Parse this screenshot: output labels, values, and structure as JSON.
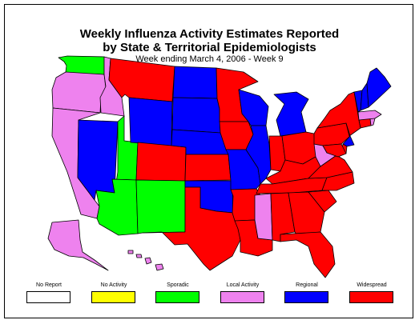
{
  "title_line1": "Weekly Influenza Activity Estimates Reported",
  "title_line2": "by State & Territorial Epidemiologists",
  "subtitle": "Week ending March 4, 2006 - Week 9",
  "colors": {
    "no_report": "#ffffff",
    "no_activity": "#ffff00",
    "sporadic": "#00ff00",
    "local": "#ee82ee",
    "regional": "#0000ff",
    "widespread": "#ff0000",
    "border": "#000000"
  },
  "legend": [
    {
      "label": "No Report",
      "level": "no_report"
    },
    {
      "label": "No Activity",
      "level": "no_activity"
    },
    {
      "label": "Sporadic",
      "level": "sporadic"
    },
    {
      "label": "Local Activity",
      "level": "local"
    },
    {
      "label": "Regional",
      "level": "regional"
    },
    {
      "label": "Widespread",
      "level": "widespread"
    }
  ],
  "states": [
    {
      "code": "WA",
      "level": "sporadic"
    },
    {
      "code": "OR",
      "level": "local"
    },
    {
      "code": "CA",
      "level": "local"
    },
    {
      "code": "ID",
      "level": "local"
    },
    {
      "code": "NV",
      "level": "regional"
    },
    {
      "code": "UT",
      "level": "sporadic"
    },
    {
      "code": "AZ",
      "level": "sporadic"
    },
    {
      "code": "MT",
      "level": "widespread"
    },
    {
      "code": "WY",
      "level": "regional"
    },
    {
      "code": "CO",
      "level": "widespread"
    },
    {
      "code": "NM",
      "level": "sporadic"
    },
    {
      "code": "ND",
      "level": "regional"
    },
    {
      "code": "SD",
      "level": "regional"
    },
    {
      "code": "NE",
      "level": "regional"
    },
    {
      "code": "KS",
      "level": "widespread"
    },
    {
      "code": "OK",
      "level": "regional"
    },
    {
      "code": "TX",
      "level": "widespread"
    },
    {
      "code": "MN",
      "level": "widespread"
    },
    {
      "code": "IA",
      "level": "widespread"
    },
    {
      "code": "MO",
      "level": "regional"
    },
    {
      "code": "AR",
      "level": "widespread"
    },
    {
      "code": "LA",
      "level": "widespread"
    },
    {
      "code": "WI",
      "level": "regional"
    },
    {
      "code": "IL",
      "level": "regional"
    },
    {
      "code": "MI",
      "level": "regional"
    },
    {
      "code": "IN",
      "level": "widespread"
    },
    {
      "code": "OH",
      "level": "widespread"
    },
    {
      "code": "KY",
      "level": "widespread"
    },
    {
      "code": "TN",
      "level": "widespread"
    },
    {
      "code": "MS",
      "level": "local"
    },
    {
      "code": "AL",
      "level": "widespread"
    },
    {
      "code": "GA",
      "level": "widespread"
    },
    {
      "code": "FL",
      "level": "widespread"
    },
    {
      "code": "SC",
      "level": "widespread"
    },
    {
      "code": "NC",
      "level": "widespread"
    },
    {
      "code": "VA",
      "level": "widespread"
    },
    {
      "code": "WV",
      "level": "local"
    },
    {
      "code": "PA",
      "level": "widespread"
    },
    {
      "code": "NY",
      "level": "widespread"
    },
    {
      "code": "NJ",
      "level": "regional"
    },
    {
      "code": "DE",
      "level": "widespread"
    },
    {
      "code": "MD",
      "level": "widespread"
    },
    {
      "code": "CT",
      "level": "widespread"
    },
    {
      "code": "RI",
      "level": "local"
    },
    {
      "code": "MA",
      "level": "local"
    },
    {
      "code": "VT",
      "level": "regional"
    },
    {
      "code": "NH",
      "level": "regional"
    },
    {
      "code": "ME",
      "level": "regional"
    },
    {
      "code": "AK",
      "level": "local"
    },
    {
      "code": "HI",
      "level": "local"
    }
  ]
}
